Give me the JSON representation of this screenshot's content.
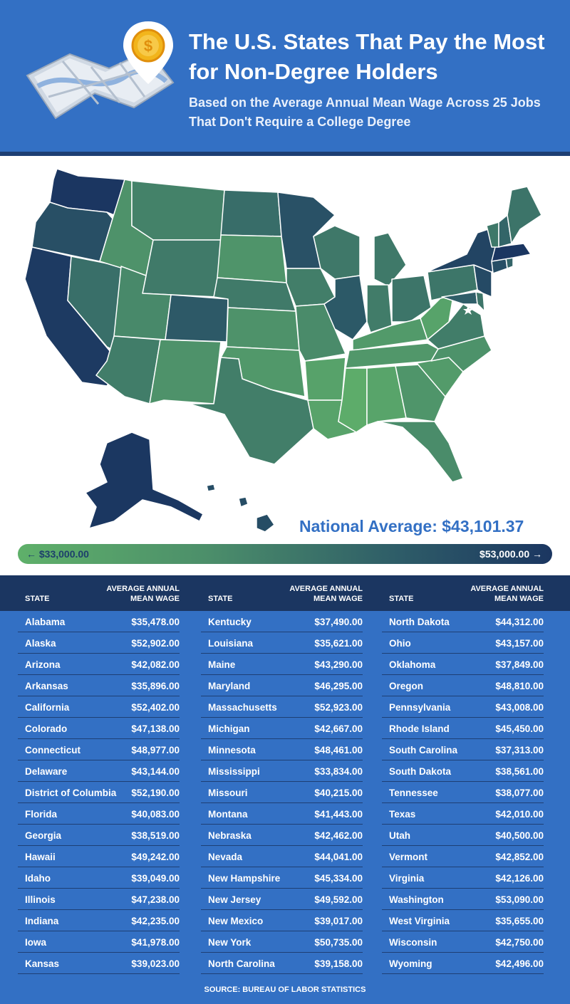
{
  "header": {
    "title": "The U.S. States That Pay the Most for Non-Degree Holders",
    "subtitle": "Based on the Average Annual Mean Wage Across 25 Jobs That Don't Require a College Degree"
  },
  "icons": [
    "map-icon",
    "location-pin-icon",
    "dollar-coin-icon",
    "arrow-left-icon",
    "arrow-right-icon",
    "star-icon"
  ],
  "national_average": {
    "label": "National Average: $43,101.37",
    "value": 43101.37
  },
  "legend": {
    "min_label": "← $33,000.00",
    "max_label": "$53,000.00 →",
    "min": 33000,
    "max": 53000,
    "color_low": "#5fb06a",
    "color_high": "#1b3661"
  },
  "table": {
    "header_state": "STATE",
    "header_wage_line1": "AVERAGE ANNUAL",
    "header_wage_line2": "MEAN WAGE",
    "columns": [
      [
        {
          "state": "Alabama",
          "wage": "$35,478.00"
        },
        {
          "state": "Alaska",
          "wage": "$52,902.00"
        },
        {
          "state": "Arizona",
          "wage": "$42,082.00"
        },
        {
          "state": "Arkansas",
          "wage": "$35,896.00"
        },
        {
          "state": "California",
          "wage": "$52,402.00"
        },
        {
          "state": "Colorado",
          "wage": "$47,138.00"
        },
        {
          "state": "Connecticut",
          "wage": "$48,977.00"
        },
        {
          "state": "Delaware",
          "wage": "$43,144.00"
        },
        {
          "state": "District of Columbia",
          "wage": "$52,190.00"
        },
        {
          "state": "Florida",
          "wage": "$40,083.00"
        },
        {
          "state": "Georgia",
          "wage": "$38,519.00"
        },
        {
          "state": "Hawaii",
          "wage": "$49,242.00"
        },
        {
          "state": "Idaho",
          "wage": "$39,049.00"
        },
        {
          "state": "Illinois",
          "wage": "$47,238.00"
        },
        {
          "state": "Indiana",
          "wage": "$42,235.00"
        },
        {
          "state": "Iowa",
          "wage": "$41,978.00"
        },
        {
          "state": "Kansas",
          "wage": "$39,023.00"
        }
      ],
      [
        {
          "state": "Kentucky",
          "wage": "$37,490.00"
        },
        {
          "state": "Louisiana",
          "wage": "$35,621.00"
        },
        {
          "state": "Maine",
          "wage": "$43,290.00"
        },
        {
          "state": "Maryland",
          "wage": "$46,295.00"
        },
        {
          "state": "Massachusetts",
          "wage": "$52,923.00"
        },
        {
          "state": "Michigan",
          "wage": "$42,667.00"
        },
        {
          "state": "Minnesota",
          "wage": "$48,461.00"
        },
        {
          "state": "Mississippi",
          "wage": "$33,834.00"
        },
        {
          "state": "Missouri",
          "wage": "$40,215.00"
        },
        {
          "state": "Montana",
          "wage": "$41,443.00"
        },
        {
          "state": "Nebraska",
          "wage": "$42,462.00"
        },
        {
          "state": "Nevada",
          "wage": "$44,041.00"
        },
        {
          "state": "New Hampshire",
          "wage": "$45,334.00"
        },
        {
          "state": "New Jersey",
          "wage": "$49,592.00"
        },
        {
          "state": "New Mexico",
          "wage": "$39,017.00"
        },
        {
          "state": "New York",
          "wage": "$50,735.00"
        },
        {
          "state": "North Carolina",
          "wage": "$39,158.00"
        }
      ],
      [
        {
          "state": "North Dakota",
          "wage": "$44,312.00"
        },
        {
          "state": "Ohio",
          "wage": "$43,157.00"
        },
        {
          "state": "Oklahoma",
          "wage": "$37,849.00"
        },
        {
          "state": "Oregon",
          "wage": "$48,810.00"
        },
        {
          "state": "Pennsylvania",
          "wage": "$43,008.00"
        },
        {
          "state": "Rhode Island",
          "wage": "$45,450.00"
        },
        {
          "state": "South Carolina",
          "wage": "$37,313.00"
        },
        {
          "state": "South Dakota",
          "wage": "$38,561.00"
        },
        {
          "state": "Tennessee",
          "wage": "$38,077.00"
        },
        {
          "state": "Texas",
          "wage": "$42,010.00"
        },
        {
          "state": "Utah",
          "wage": "$40,500.00"
        },
        {
          "state": "Vermont",
          "wage": "$42,852.00"
        },
        {
          "state": "Virginia",
          "wage": "$42,126.00"
        },
        {
          "state": "Washington",
          "wage": "$53,090.00"
        },
        {
          "state": "West Virginia",
          "wage": "$35,655.00"
        },
        {
          "state": "Wisconsin",
          "wage": "$42,750.00"
        },
        {
          "state": "Wyoming",
          "wage": "$42,496.00"
        }
      ]
    ],
    "source": "SOURCE: BUREAU OF LABOR STATISTICS"
  },
  "chart_data": {
    "type": "table",
    "title": "The U.S. States That Pay the Most for Non-Degree Holders",
    "subtitle": "Based on the Average Annual Mean Wage Across 25 Jobs That Don't Require a College Degree",
    "value_range": [
      33000,
      53000
    ],
    "national_average": 43101.37,
    "values": {
      "Alabama": 35478,
      "Alaska": 52902,
      "Arizona": 42082,
      "Arkansas": 35896,
      "California": 52402,
      "Colorado": 47138,
      "Connecticut": 48977,
      "Delaware": 43144,
      "District of Columbia": 52190,
      "Florida": 40083,
      "Georgia": 38519,
      "Hawaii": 49242,
      "Idaho": 39049,
      "Illinois": 47238,
      "Indiana": 42235,
      "Iowa": 41978,
      "Kansas": 39023,
      "Kentucky": 37490,
      "Louisiana": 35621,
      "Maine": 43290,
      "Maryland": 46295,
      "Massachusetts": 52923,
      "Michigan": 42667,
      "Minnesota": 48461,
      "Mississippi": 33834,
      "Missouri": 40215,
      "Montana": 41443,
      "Nebraska": 42462,
      "Nevada": 44041,
      "New Hampshire": 45334,
      "New Jersey": 49592,
      "New Mexico": 39017,
      "New York": 50735,
      "North Carolina": 39158,
      "North Dakota": 44312,
      "Ohio": 43157,
      "Oklahoma": 37849,
      "Oregon": 48810,
      "Pennsylvania": 43008,
      "Rhode Island": 45450,
      "South Carolina": 37313,
      "South Dakota": 38561,
      "Tennessee": 38077,
      "Texas": 42010,
      "Utah": 40500,
      "Vermont": 42852,
      "Virginia": 42126,
      "Washington": 53090,
      "West Virginia": 35655,
      "Wisconsin": 42750,
      "Wyoming": 42496
    }
  }
}
